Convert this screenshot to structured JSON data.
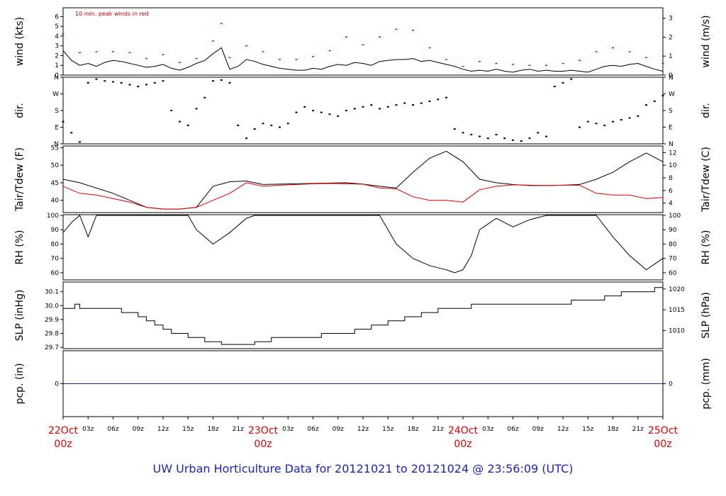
{
  "chart_data": {
    "type": "line",
    "title": "UW Urban Horticulture Data for 20121021  to  20121024 @ 23:56:09  (UTC)",
    "x_range_hours": [
      0,
      72
    ],
    "x_ticks": [
      "03z",
      "06z",
      "09z",
      "12z",
      "15z",
      "18z",
      "21z",
      "03z",
      "06z",
      "09z",
      "12z",
      "15z",
      "18z",
      "21z",
      "03z",
      "06z",
      "09z",
      "12z",
      "15z",
      "18z",
      "21z"
    ],
    "date_labels": [
      {
        "day": "22Oct",
        "time": "00z"
      },
      {
        "day": "23Oct",
        "time": "00z"
      },
      {
        "day": "24Oct",
        "time": "00z"
      },
      {
        "day": "25Oct",
        "time": "00z"
      }
    ],
    "panels": [
      {
        "key": "wind",
        "left_label": "wind (kts)",
        "right_label": "wind (m/s)",
        "left_ticks": [
          "0",
          "1",
          "2",
          "3",
          "4",
          "5",
          "6"
        ],
        "left_range": [
          0,
          6.9
        ],
        "right_ticks": [
          "0",
          "1",
          "2",
          "3"
        ],
        "right_ticks_values": [
          0,
          1,
          2,
          3
        ],
        "annotation": "10 min. peak winds in red",
        "series": [
          {
            "name": "wind",
            "color": "#000000",
            "hours": [
              0,
              1,
              2,
              3,
              4,
              5,
              6,
              7,
              8,
              9,
              10,
              11,
              12,
              13,
              14,
              15,
              16,
              17,
              18,
              19,
              20,
              21,
              22,
              23,
              24,
              25,
              26,
              27,
              28,
              29,
              30,
              31,
              32,
              33,
              34,
              35,
              36,
              37,
              38,
              39,
              40,
              41,
              42,
              43,
              44,
              45,
              46,
              47,
              48,
              49,
              50,
              51,
              52,
              53,
              54,
              55,
              56,
              57,
              58,
              59,
              60,
              61,
              62,
              63,
              64,
              65,
              66,
              67,
              68,
              69,
              70,
              71,
              72
            ],
            "values": [
              2.5,
              1.5,
              1.0,
              1.2,
              0.9,
              1.3,
              1.5,
              1.4,
              1.2,
              1.0,
              0.8,
              0.9,
              1.1,
              0.7,
              0.5,
              0.8,
              1.2,
              1.5,
              2.2,
              2.8,
              0.6,
              0.9,
              1.6,
              1.4,
              1.1,
              0.9,
              0.7,
              0.6,
              0.5,
              0.5,
              0.7,
              0.6,
              0.9,
              1.1,
              1.0,
              1.3,
              1.2,
              1.0,
              1.4,
              1.5,
              1.6,
              1.6,
              1.7,
              1.4,
              1.5,
              1.3,
              1.1,
              0.9,
              0.6,
              0.4,
              0.5,
              0.4,
              0.6,
              0.4,
              0.3,
              0.5,
              0.6,
              0.4,
              0.5,
              0.4,
              0.4,
              0.5,
              0.4,
              0.3,
              0.6,
              0.9,
              1.0,
              0.9,
              1.1,
              1.2,
              0.9,
              0.6,
              0.4
            ]
          },
          {
            "name": "10 min. peak",
            "color": "#e00000",
            "hours": [
              0,
              2,
              4,
              6,
              8,
              10,
              12,
              14,
              16,
              18,
              19,
              20,
              22,
              24,
              26,
              28,
              30,
              32,
              34,
              36,
              38,
              40,
              42,
              44,
              46,
              48,
              50,
              52,
              54,
              56,
              58,
              60,
              62,
              64,
              66,
              68,
              70,
              72
            ],
            "values": [
              4.2,
              2.3,
              2.4,
              2.4,
              2.3,
              1.7,
              2.1,
              1.3,
              1.7,
              3.5,
              5.3,
              1.8,
              3.0,
              2.4,
              1.6,
              1.6,
              1.9,
              2.5,
              3.9,
              3.1,
              3.9,
              4.7,
              4.6,
              2.8,
              1.6,
              0.9,
              1.4,
              1.2,
              1.1,
              1.0,
              1.0,
              1.2,
              1.5,
              2.4,
              2.8,
              2.4,
              1.8,
              1.2
            ]
          }
        ]
      },
      {
        "key": "dir",
        "left_label": "dir.",
        "right_label": "dir.",
        "left_ticks": [
          "N",
          "W",
          "S",
          "E",
          "N"
        ],
        "left_ticks_values": [
          360,
          270,
          180,
          90,
          0
        ],
        "right_ticks": [
          "N",
          "W",
          "S",
          "E",
          "N"
        ],
        "left_range": [
          0,
          360
        ],
        "series": [
          {
            "name": "direction",
            "color": "#000000",
            "hours": [
              0,
              1,
              2,
              3,
              4,
              5,
              6,
              7,
              8,
              9,
              10,
              11,
              12,
              13,
              14,
              15,
              16,
              17,
              18,
              19,
              20,
              21,
              22,
              23,
              24,
              25,
              26,
              27,
              28,
              29,
              30,
              31,
              32,
              33,
              34,
              35,
              36,
              37,
              38,
              39,
              40,
              41,
              42,
              43,
              44,
              45,
              46,
              47,
              48,
              49,
              50,
              51,
              52,
              53,
              54,
              55,
              56,
              57,
              58,
              59,
              60,
              61,
              62,
              63,
              64,
              65,
              66,
              67,
              68,
              69,
              70,
              71,
              72
            ],
            "values": [
              120,
              60,
              10,
              330,
              350,
              340,
              335,
              330,
              320,
              310,
              320,
              330,
              340,
              180,
              120,
              100,
              190,
              250,
              340,
              345,
              330,
              100,
              30,
              80,
              110,
              100,
              90,
              110,
              170,
              200,
              180,
              170,
              160,
              150,
              180,
              190,
              200,
              210,
              190,
              200,
              210,
              220,
              210,
              220,
              230,
              240,
              250,
              80,
              60,
              50,
              40,
              30,
              50,
              30,
              20,
              15,
              30,
              60,
              40,
              310,
              330,
              350,
              90,
              120,
              110,
              100,
              120,
              130,
              140,
              150,
              210,
              230,
              260
            ]
          }
        ]
      },
      {
        "key": "temp",
        "left_label": "Tair/Tdew (F)",
        "right_label": "Tair/Tdew (C)",
        "left_ticks": [
          "40",
          "45",
          "50",
          "55"
        ],
        "left_range": [
          36.5,
          55.5
        ],
        "right_ticks": [
          "4",
          "6",
          "8",
          "10",
          "12"
        ],
        "right_ticks_values": [
          4,
          6,
          8,
          10,
          12
        ],
        "series": [
          {
            "name": "Tair",
            "color": "#000000",
            "hours": [
              0,
              2,
              4,
              6,
              8,
              10,
              12,
              14,
              16,
              18,
              20,
              22,
              24,
              26,
              28,
              30,
              32,
              34,
              36,
              38,
              40,
              42,
              44,
              46,
              48,
              50,
              52,
              54,
              56,
              58,
              60,
              62,
              64,
              66,
              68,
              70,
              72
            ],
            "values": [
              46,
              45,
              43.5,
              42,
              40,
              38,
              37.5,
              37.5,
              38,
              44,
              45.3,
              45.5,
              44.5,
              44.6,
              44.7,
              44.8,
              44.9,
              45,
              44.6,
              44,
              43.5,
              48,
              52,
              54,
              51,
              46,
              45,
              44.5,
              44.2,
              44.2,
              44.3,
              44.5,
              46,
              48,
              51,
              53.5,
              51
            ]
          },
          {
            "name": "Tdew",
            "color": "#e00000",
            "hours": [
              0,
              2,
              4,
              6,
              8,
              10,
              12,
              14,
              16,
              18,
              20,
              22,
              24,
              26,
              28,
              30,
              32,
              34,
              36,
              38,
              40,
              42,
              44,
              46,
              48,
              50,
              52,
              54,
              56,
              58,
              60,
              62,
              64,
              66,
              68,
              70,
              72
            ],
            "values": [
              44,
              42,
              41.5,
              40.5,
              39.5,
              38,
              37.5,
              37.5,
              38,
              40,
              42,
              45,
              44,
              44.3,
              44.5,
              44.7,
              44.8,
              44.7,
              44.6,
              43.5,
              43.3,
              41,
              40,
              40,
              39.5,
              43,
              44,
              44.4,
              44.3,
              44.2,
              44.3,
              44.3,
              42,
              41.5,
              41.5,
              40.5,
              40.8
            ]
          }
        ]
      },
      {
        "key": "rh",
        "left_label": "RH (%)",
        "right_label": "RH (%)",
        "left_ticks": [
          "60",
          "70",
          "80",
          "90",
          "100"
        ],
        "left_range": [
          55,
          100.5
        ],
        "right_ticks": [
          "60",
          "70",
          "80",
          "90",
          "100"
        ],
        "right_ticks_values": [
          60,
          70,
          80,
          90,
          100
        ],
        "series": [
          {
            "name": "RH",
            "color": "#000000",
            "hours": [
              0,
              1,
              2,
              3,
              4,
              6,
              8,
              10,
              12,
              14,
              15,
              16,
              17,
              18,
              20,
              22,
              23,
              24,
              26,
              28,
              30,
              32,
              34,
              36,
              38,
              40,
              42,
              44,
              46,
              47,
              48,
              49,
              50,
              52,
              54,
              56,
              58,
              60,
              62,
              64,
              66,
              68,
              70,
              72
            ],
            "values": [
              88,
              95,
              100,
              85,
              100,
              100,
              100,
              100,
              100,
              100,
              100,
              90,
              85,
              80,
              88,
              98,
              100,
              100,
              100,
              100,
              100,
              100,
              100,
              100,
              100,
              80,
              70,
              65,
              62,
              60,
              62,
              72,
              90,
              98,
              92,
              97,
              100,
              100,
              100,
              100,
              85,
              72,
              62,
              70
            ]
          }
        ]
      },
      {
        "key": "slp",
        "left_label": "SLP (inHg)",
        "right_label": "SLP (hPa)",
        "left_ticks": [
          "29.7",
          "29.8",
          "29.9",
          "30.0",
          "30.1"
        ],
        "left_range": [
          29.69,
          30.17
        ],
        "right_ticks": [
          "1010",
          "1015",
          "1020"
        ],
        "right_ticks_values": [
          29.82,
          29.97,
          30.12
        ],
        "series": [
          {
            "name": "SLP",
            "color": "#000000",
            "step": true,
            "hours": [
              0,
              1,
              1.4,
              2,
              3,
              5,
              7,
              9,
              10,
              11,
              12,
              13,
              15,
              17,
              19,
              21,
              23,
              25,
              27,
              29,
              31,
              33,
              35,
              37,
              39,
              41,
              43,
              45,
              47,
              49,
              51,
              53,
              55,
              57,
              59,
              61,
              63,
              65,
              67,
              69,
              71,
              72
            ],
            "values": [
              29.98,
              29.98,
              30.01,
              29.98,
              29.98,
              29.98,
              29.95,
              29.92,
              29.89,
              29.86,
              29.83,
              29.8,
              29.77,
              29.74,
              29.72,
              29.72,
              29.74,
              29.77,
              29.77,
              29.77,
              29.8,
              29.8,
              29.83,
              29.86,
              29.89,
              29.92,
              29.95,
              29.98,
              29.98,
              30.01,
              30.01,
              30.01,
              30.01,
              30.01,
              30.01,
              30.04,
              30.04,
              30.07,
              30.1,
              30.1,
              30.13,
              30.13
            ]
          }
        ]
      },
      {
        "key": "pcp",
        "left_label": "pcp. (in)",
        "right_label": "pcp. (mm)",
        "left_ticks": [
          "0"
        ],
        "left_range": [
          -1,
          1
        ],
        "right_ticks": [
          "0"
        ],
        "right_ticks_values": [
          0
        ],
        "series": [
          {
            "name": "precip",
            "color": "#1f1fbf",
            "hours": [
              0,
              72
            ],
            "values": [
              0,
              0
            ]
          }
        ]
      }
    ]
  },
  "colors": {
    "obs": "#000000",
    "peak": "#e00000",
    "caption": "#1f1fbf",
    "dates": "#e00000"
  }
}
